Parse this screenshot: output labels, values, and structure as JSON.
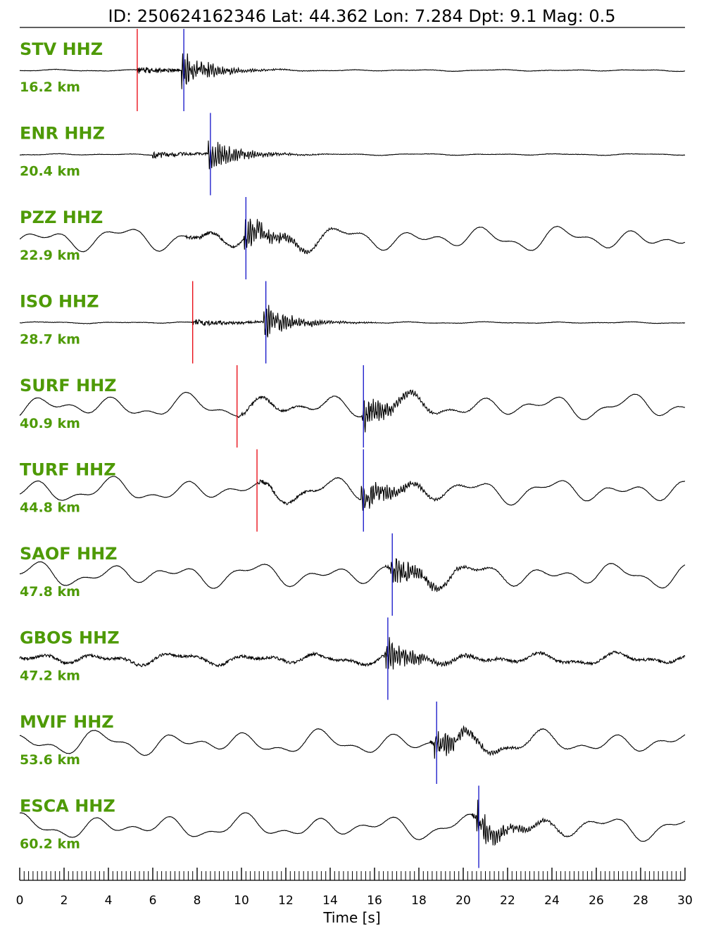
{
  "header": {
    "text": "ID: 250624162346 Lat:  44.362 Lon:   7.284 Dpt:     9.1 Mag:   0.5"
  },
  "colors": {
    "label": "#4e9a06",
    "trace": "#000000",
    "p_pick": "#e8000b",
    "s_pick": "#1010c8"
  },
  "chart_data": {
    "type": "line",
    "xlabel": "Time [s]",
    "xlim": [
      0,
      30
    ],
    "xticks": [
      "0",
      "2",
      "4",
      "6",
      "8",
      "10",
      "12",
      "14",
      "16",
      "18",
      "20",
      "22",
      "24",
      "26",
      "28",
      "30"
    ],
    "series": [
      {
        "name": "STV HHZ",
        "distance": "16.2 km",
        "p": 5.3,
        "s": 7.4,
        "onset": 5.3,
        "style": "quiet"
      },
      {
        "name": "ENR HHZ",
        "distance": "20.4 km",
        "p": null,
        "s": 8.6,
        "onset": 6.0,
        "style": "quiet"
      },
      {
        "name": "PZZ HHZ",
        "distance": "22.9 km",
        "p": null,
        "s": 10.2,
        "onset": 7.5,
        "style": "wavy"
      },
      {
        "name": "ISO HHZ",
        "distance": "28.7 km",
        "p": 7.8,
        "s": 11.1,
        "onset": 7.8,
        "style": "quiet"
      },
      {
        "name": "SURF HHZ",
        "distance": "40.9 km",
        "p": 9.8,
        "s": 15.5,
        "onset": 9.8,
        "style": "wavy"
      },
      {
        "name": "TURF HHZ",
        "distance": "44.8 km",
        "p": 10.7,
        "s": 15.5,
        "onset": 10.7,
        "style": "wavy"
      },
      {
        "name": "SAOF HHZ",
        "distance": "47.8 km",
        "p": null,
        "s": 16.8,
        "onset": 16.5,
        "style": "wavy"
      },
      {
        "name": "GBOS HHZ",
        "distance": "47.2 km",
        "p": null,
        "s": 16.6,
        "onset": 16.4,
        "style": "noisy"
      },
      {
        "name": "MVIF HHZ",
        "distance": "53.6 km",
        "p": null,
        "s": 18.8,
        "onset": 18.5,
        "style": "wavy"
      },
      {
        "name": "ESCA HHZ",
        "distance": "60.2 km",
        "p": null,
        "s": 20.7,
        "onset": 20.4,
        "style": "wavy"
      }
    ]
  }
}
